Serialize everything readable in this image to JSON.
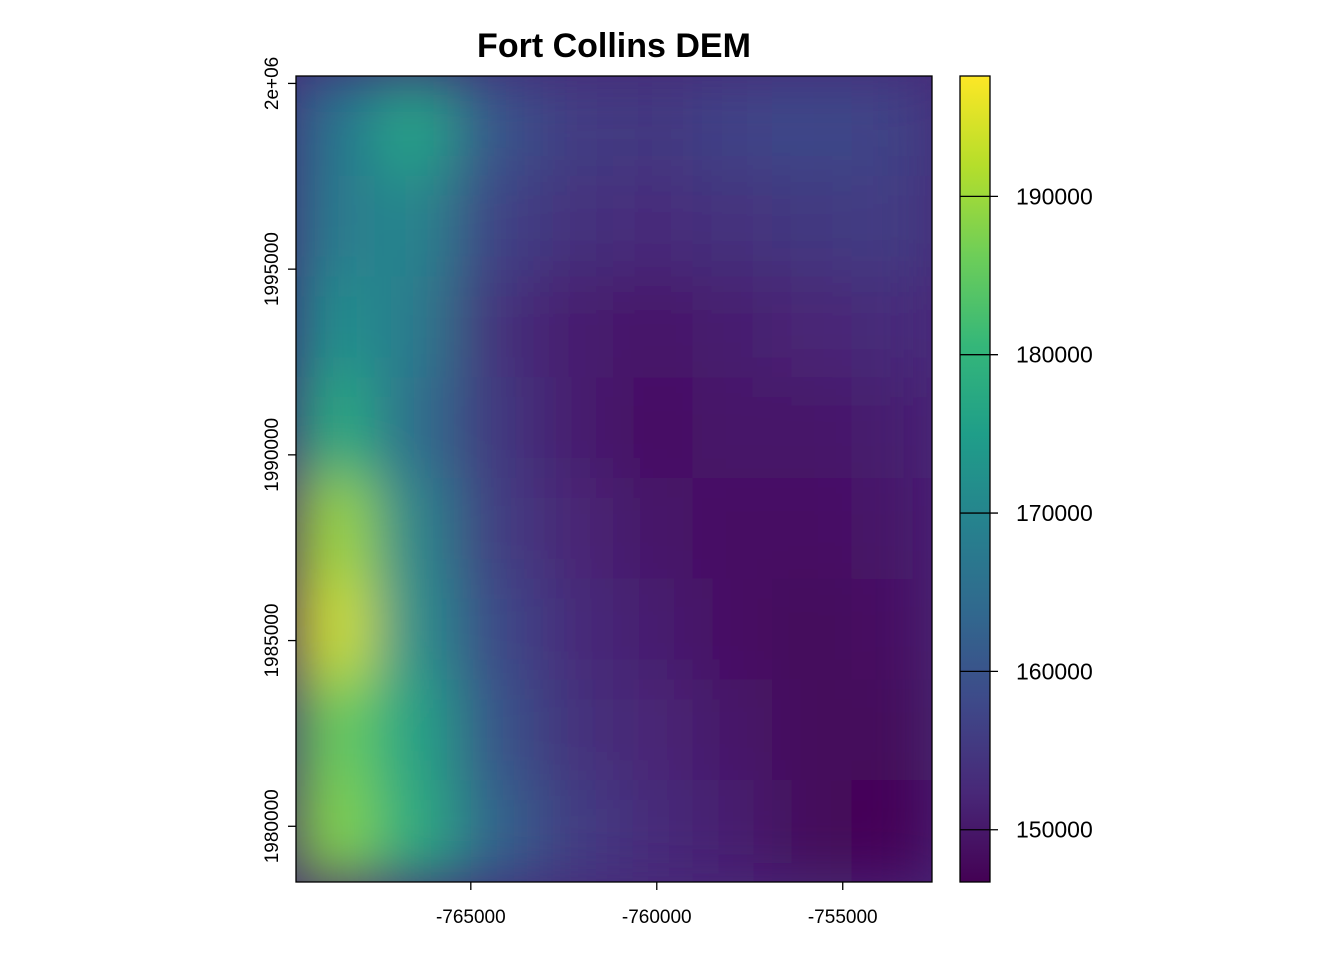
{
  "chart_data": {
    "type": "heatmap",
    "title": "Fort Collins DEM",
    "xlabel": "",
    "ylabel": "",
    "xlim": [
      -769700,
      -752600
    ],
    "ylim": [
      1978500,
      2000200
    ],
    "x_ticks": [
      {
        "value": -765000,
        "label": "-765000"
      },
      {
        "value": -760000,
        "label": "-760000"
      },
      {
        "value": -755000,
        "label": "-755000"
      }
    ],
    "y_ticks": [
      {
        "value": 1980000,
        "label": "1980000"
      },
      {
        "value": 1985000,
        "label": "1985000"
      },
      {
        "value": 1990000,
        "label": "1990000"
      },
      {
        "value": 1995000,
        "label": "1995000"
      },
      {
        "value": 2000000,
        "label": "2e+06"
      }
    ],
    "colorbar": {
      "palette": "viridis",
      "range": [
        146700,
        197600
      ],
      "ticks": [
        {
          "value": 150000,
          "label": "150000"
        },
        {
          "value": 160000,
          "label": "160000"
        },
        {
          "value": 170000,
          "label": "170000"
        },
        {
          "value": 180000,
          "label": "180000"
        },
        {
          "value": 190000,
          "label": "190000"
        }
      ],
      "colors": [
        "#440154",
        "#482878",
        "#3e4989",
        "#31688e",
        "#26828e",
        "#1f9e89",
        "#35b779",
        "#6ece58",
        "#b5de2b",
        "#fde725"
      ]
    },
    "value_range": [
      146700,
      197600
    ],
    "description_grid": {
      "rows_top_to_bottom": 8,
      "cols_left_to_right": 8,
      "values": [
        [
          166000,
          176000,
          160000,
          156000,
          155000,
          157000,
          158000,
          157000
        ],
        [
          168000,
          170000,
          157000,
          154000,
          153000,
          154000,
          155000,
          156000
        ],
        [
          172000,
          168000,
          154000,
          151000,
          150000,
          151000,
          152000,
          153000
        ],
        [
          178000,
          165000,
          155000,
          151000,
          149000,
          150000,
          150000,
          151000
        ],
        [
          190000,
          170000,
          156000,
          152000,
          150000,
          149000,
          149000,
          150000
        ],
        [
          194000,
          172000,
          158000,
          153000,
          151000,
          149000,
          148000,
          149000
        ],
        [
          186000,
          176000,
          160000,
          154000,
          152000,
          150000,
          148000,
          148000
        ],
        [
          188000,
          178000,
          163000,
          156000,
          153000,
          151000,
          148000,
          147000
        ]
      ]
    }
  }
}
